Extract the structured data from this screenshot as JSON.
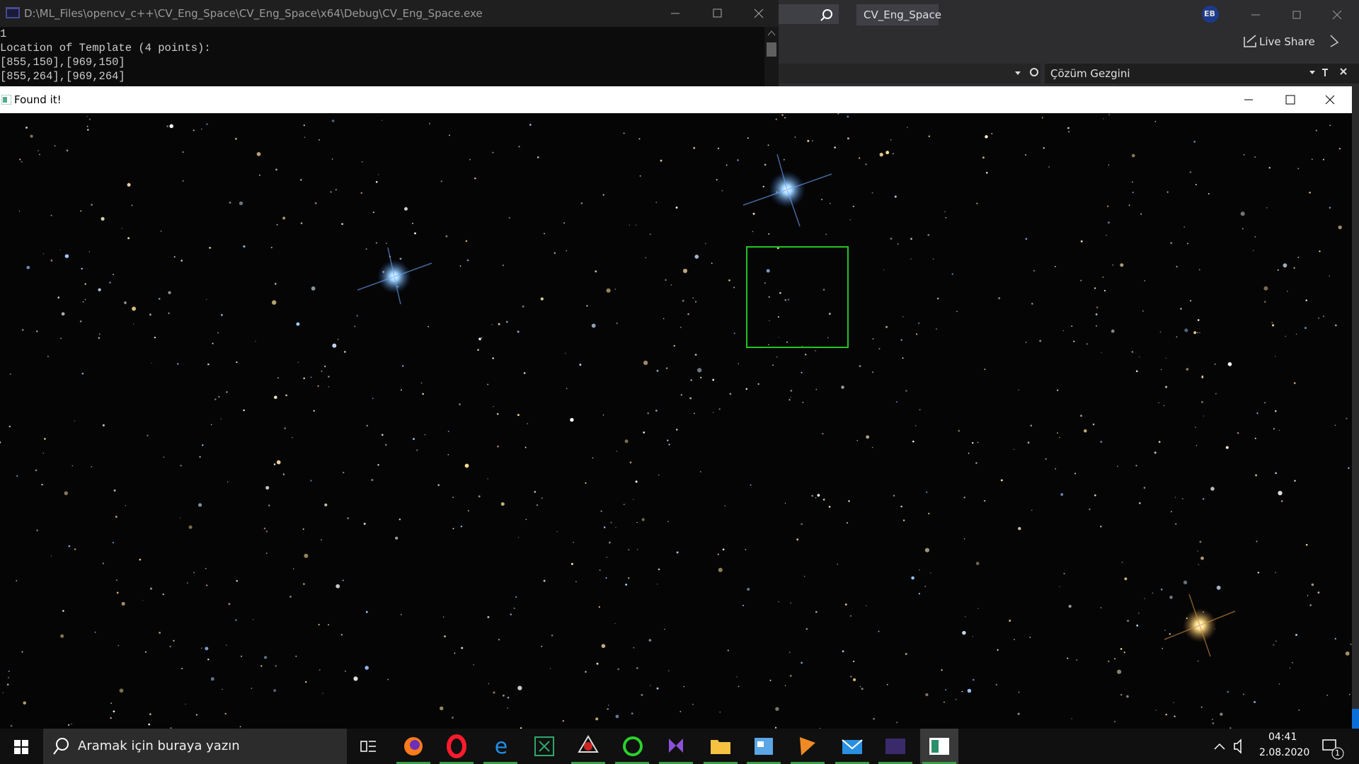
{
  "console": {
    "title": "D:\\ML_Files\\opencv_c++\\CV_Eng_Space\\CV_Eng_Space\\x64\\Debug\\CV_Eng_Space.exe",
    "lines": [
      "1",
      "Location of Template (4 points):",
      "[855,150],[969,150]",
      "[855,264],[969,264]"
    ]
  },
  "ide": {
    "solution_tab": "CV_Eng_Space",
    "user": "EB",
    "live_share": "Live Share",
    "panel": "Çözüm Gezgini"
  },
  "viewer": {
    "title": "Found it!"
  },
  "taskbar": {
    "search": "Aramak için buraya yazın",
    "time": "04:41",
    "date": "2.08.2020",
    "notifications": "1"
  }
}
